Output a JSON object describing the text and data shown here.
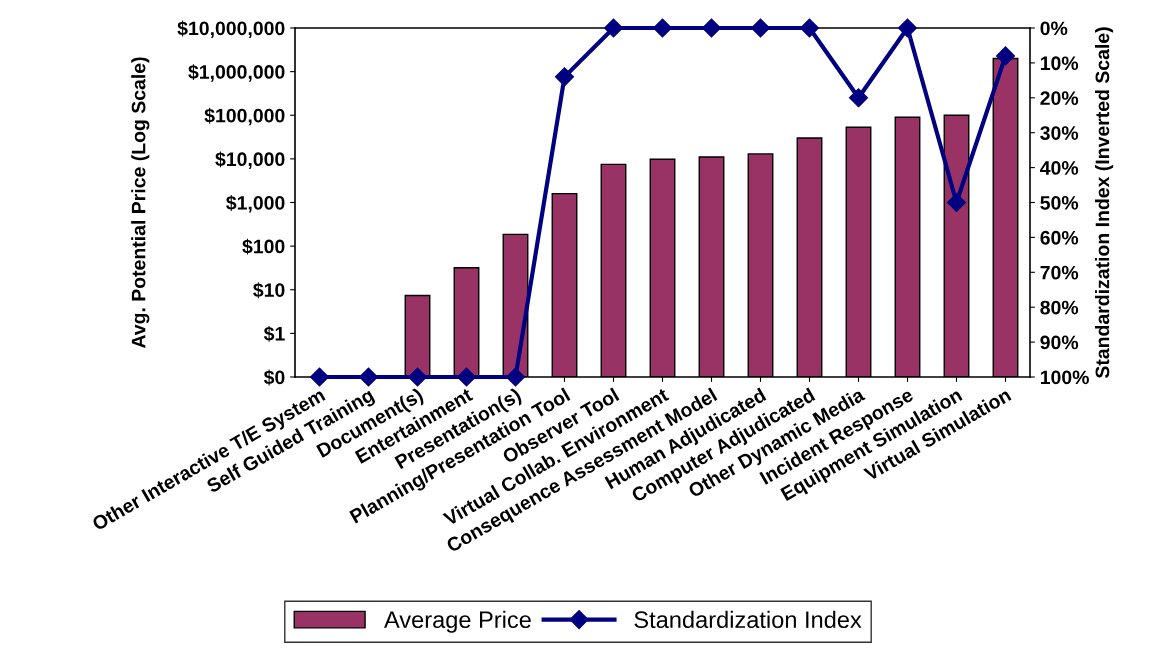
{
  "chart_data": {
    "type": "bar",
    "ylabel": "Avg. Potential Price (Log Scale)",
    "y2label": "Standardization Index (Inverted Scale)",
    "categories": [
      "Other Interactive T/E System",
      "Self Guided Training",
      "Document(s)",
      "Entertainment",
      "Presentation(s)",
      "Planning/Presentation Tool",
      "Observer Tool",
      "Virtual Collab. Environment",
      "Consequence Assessment Model",
      "Human Adjudicated",
      "Computer Adjudicated",
      "Other Dynamic Media",
      "Incident Response",
      "Equipment Simulation",
      "Virtual Simulation"
    ],
    "series": [
      {
        "name": "Average Price",
        "color": "#993366",
        "values": [
          null,
          null,
          7.4,
          32,
          186,
          1600,
          7500,
          9800,
          11000,
          13000,
          30000,
          53000,
          90000,
          100000,
          2000000
        ]
      },
      {
        "name": "Standardization Index",
        "type": "line",
        "axis": "y2",
        "color": "#000080",
        "marker": "diamond",
        "values": [
          100,
          100,
          100,
          100,
          100,
          14,
          0,
          0,
          0,
          0,
          0,
          20,
          0,
          50,
          8
        ]
      }
    ],
    "log": "y",
    "ylim": [
      0.1,
      10000000
    ],
    "yticks": [
      {
        "value": 0.1,
        "label": "$0"
      },
      {
        "value": 1,
        "label": "$1"
      },
      {
        "value": 10,
        "label": "$10"
      },
      {
        "value": 100,
        "label": "$100"
      },
      {
        "value": 1000,
        "label": "$1,000"
      },
      {
        "value": 10000,
        "label": "$10,000"
      },
      {
        "value": 100000,
        "label": "$100,000"
      },
      {
        "value": 1000000,
        "label": "$1,000,000"
      },
      {
        "value": 10000000,
        "label": "$10,000,000"
      }
    ],
    "y2lim": [
      100,
      0
    ],
    "y2ticks": [
      {
        "value": 0,
        "label": "0%"
      },
      {
        "value": 10,
        "label": "10%"
      },
      {
        "value": 20,
        "label": "20%"
      },
      {
        "value": 30,
        "label": "30%"
      },
      {
        "value": 40,
        "label": "40%"
      },
      {
        "value": 50,
        "label": "50%"
      },
      {
        "value": 60,
        "label": "60%"
      },
      {
        "value": 70,
        "label": "70%"
      },
      {
        "value": 80,
        "label": "80%"
      },
      {
        "value": 90,
        "label": "90%"
      },
      {
        "value": 100,
        "label": "100%"
      }
    ],
    "grid": false,
    "legend": "bottom"
  }
}
